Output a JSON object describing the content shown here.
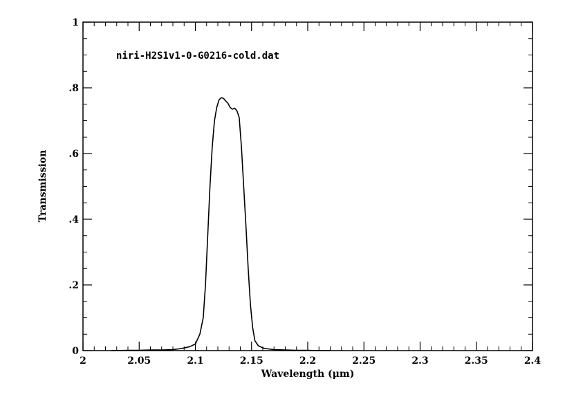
{
  "chart_data": {
    "type": "line",
    "title": "niri-H2S1v1-0-G0216-cold.dat",
    "xlabel": "Wavelength (μm)",
    "ylabel": "Transmission",
    "xlim": [
      2.0,
      2.4
    ],
    "ylim": [
      0,
      1
    ],
    "grid": false,
    "x_ticks": [
      2.0,
      2.05,
      2.1,
      2.15,
      2.2,
      2.25,
      2.3,
      2.35,
      2.4
    ],
    "x_tick_labels": [
      "2",
      "2.05",
      "2.1",
      "2.15",
      "2.2",
      "2.25",
      "2.3",
      "2.35",
      "2.4"
    ],
    "y_ticks": [
      0,
      0.2,
      0.4,
      0.6,
      0.8,
      1.0
    ],
    "y_tick_labels": [
      "0",
      ".2",
      ".4",
      ".6",
      ".8",
      "1"
    ],
    "series": [
      {
        "color": "#000000",
        "x": [
          2.025,
          2.04,
          2.05,
          2.06,
          2.07,
          2.08,
          2.085,
          2.09,
          2.095,
          2.1,
          2.104,
          2.107,
          2.109,
          2.111,
          2.113,
          2.115,
          2.117,
          2.119,
          2.121,
          2.123,
          2.125,
          2.127,
          2.129,
          2.131,
          2.133,
          2.135,
          2.137,
          2.139,
          2.141,
          2.143,
          2.145,
          2.147,
          2.149,
          2.151,
          2.153,
          2.156,
          2.16,
          2.165,
          2.17,
          2.18,
          2.19,
          2.2,
          2.21,
          2.22
        ],
        "y": [
          0.0,
          0.001,
          0.001,
          0.002,
          0.002,
          0.003,
          0.005,
          0.008,
          0.012,
          0.02,
          0.05,
          0.1,
          0.2,
          0.35,
          0.5,
          0.62,
          0.7,
          0.74,
          0.763,
          0.77,
          0.768,
          0.76,
          0.753,
          0.74,
          0.735,
          0.738,
          0.73,
          0.71,
          0.62,
          0.5,
          0.38,
          0.25,
          0.14,
          0.07,
          0.03,
          0.015,
          0.008,
          0.005,
          0.003,
          0.002,
          0.001,
          0.001,
          0.0,
          0.0
        ]
      }
    ]
  }
}
